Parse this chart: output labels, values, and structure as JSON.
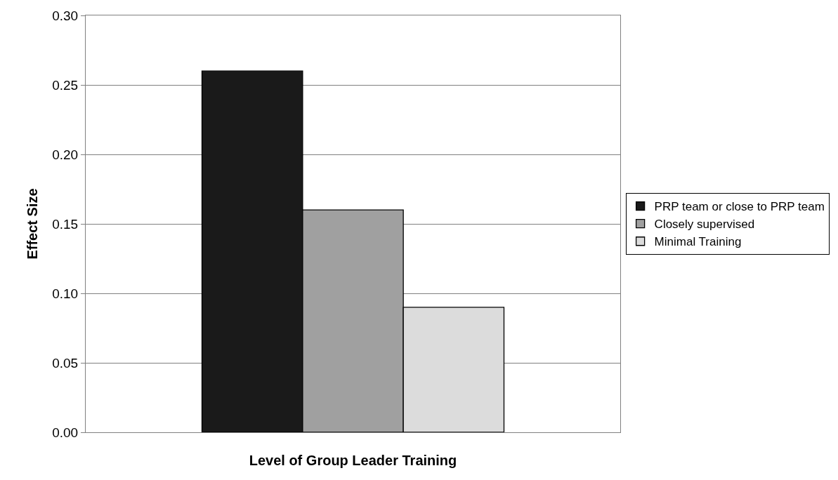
{
  "chart_data": {
    "type": "bar",
    "xlabel": "Level of Group Leader Training",
    "ylabel": "Effect Size",
    "categories": [
      null
    ],
    "series": [
      {
        "name": "PRP team or close to PRP team",
        "color": "#1a1a1a",
        "values": [
          0.26
        ]
      },
      {
        "name": "Closely supervised",
        "color": "#a0a0a0",
        "values": [
          0.16
        ]
      },
      {
        "name": "Minimal Training",
        "color": "#dcdcdc",
        "values": [
          0.09
        ]
      }
    ],
    "ylim": [
      0,
      0.3
    ],
    "yticks": [
      {
        "value": 0,
        "label": "0.00"
      },
      {
        "value": 0.05,
        "label": "0.05"
      },
      {
        "value": 0.1,
        "label": "0.10"
      },
      {
        "value": 0.15,
        "label": "0.15"
      },
      {
        "value": 0.2,
        "label": "0.20"
      },
      {
        "value": 0.25,
        "label": "0.25"
      },
      {
        "value": 0.3,
        "label": "0.30"
      }
    ],
    "grid": "y",
    "legend": "right"
  }
}
